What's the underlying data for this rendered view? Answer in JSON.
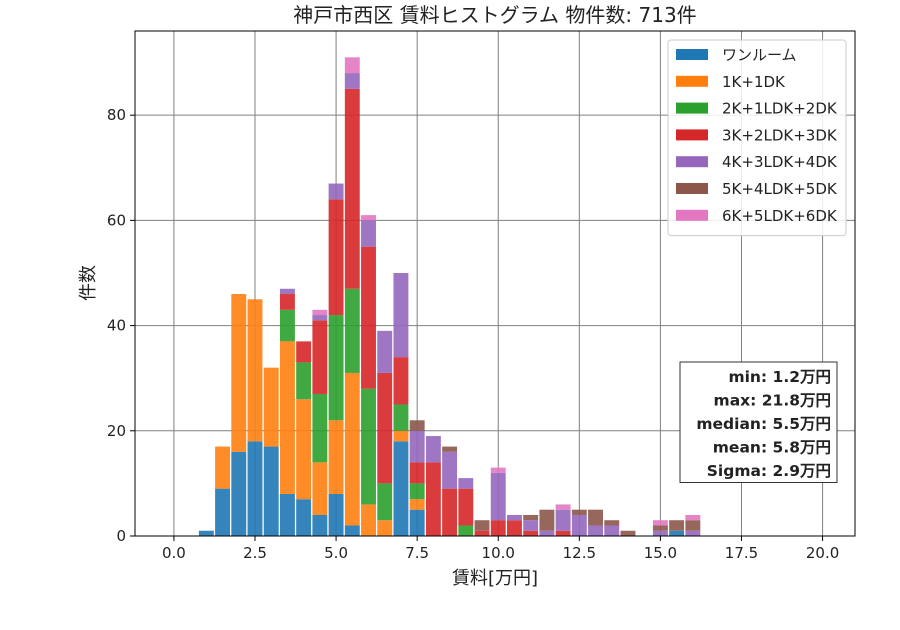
{
  "chart_data": {
    "type": "bar",
    "stacked": true,
    "title": "神戸市西区 賃料ヒストグラム 物件数: 713件",
    "xlabel": "賃料[万円]",
    "ylabel": "件数",
    "xlim": [
      -1.2,
      21.0
    ],
    "ylim": [
      0,
      96
    ],
    "grid": true,
    "legend_position": "top-right",
    "bin_width": 0.5,
    "x": [
      1.0,
      1.5,
      2.0,
      2.5,
      3.0,
      3.5,
      4.0,
      4.5,
      5.0,
      5.5,
      6.0,
      6.5,
      7.0,
      7.5,
      8.0,
      8.5,
      9.0,
      9.5,
      10.0,
      10.5,
      11.0,
      11.5,
      12.0,
      12.5,
      13.0,
      13.5,
      14.0,
      14.5,
      15.0,
      15.5,
      16.0
    ],
    "series": [
      {
        "name": "ワンルーム",
        "color": "#1f77b4",
        "values": [
          1,
          9,
          16,
          18,
          17,
          8,
          7,
          4,
          8,
          2,
          0,
          0,
          18,
          5,
          0,
          0,
          0,
          0,
          0,
          0,
          0,
          0,
          0,
          0,
          0,
          0,
          0,
          0,
          0,
          1,
          0
        ]
      },
      {
        "name": "1K+1DK",
        "color": "#ff7f0e",
        "values": [
          0,
          8,
          30,
          27,
          15,
          29,
          19,
          10,
          14,
          29,
          6,
          3,
          2,
          2,
          0,
          0,
          0,
          0,
          0,
          0,
          0,
          0,
          0,
          0,
          0,
          0,
          0,
          0,
          0,
          0,
          0
        ]
      },
      {
        "name": "2K+1LDK+2DK",
        "color": "#2ca02c",
        "values": [
          0,
          0,
          0,
          0,
          0,
          6,
          7,
          13,
          20,
          16,
          22,
          7,
          5,
          3,
          0,
          0,
          2,
          0,
          0,
          0,
          0,
          0,
          0,
          0,
          0,
          0,
          0,
          0,
          0,
          0,
          0
        ]
      },
      {
        "name": "3K+2LDK+3DK",
        "color": "#d62728",
        "values": [
          0,
          0,
          0,
          0,
          0,
          3,
          4,
          14,
          22,
          38,
          27,
          21,
          9,
          4,
          14,
          9,
          7,
          1,
          3,
          3,
          1,
          0,
          1,
          0,
          0,
          0,
          0,
          0,
          0,
          0,
          0
        ]
      },
      {
        "name": "4K+3LDK+4DK",
        "color": "#9467bd",
        "values": [
          0,
          0,
          0,
          0,
          0,
          1,
          0,
          1,
          3,
          3,
          5,
          8,
          16,
          6,
          5,
          7,
          2,
          0,
          9,
          1,
          2,
          1,
          4,
          4,
          2,
          2,
          0,
          0,
          1,
          0,
          1
        ]
      },
      {
        "name": "5K+4LDK+5DK",
        "color": "#8c564b",
        "values": [
          0,
          0,
          0,
          0,
          0,
          0,
          0,
          0,
          0,
          0,
          0,
          0,
          0,
          2,
          0,
          1,
          0,
          2,
          0,
          0,
          1,
          4,
          0,
          1,
          3,
          1,
          1,
          0,
          1,
          2,
          2
        ]
      },
      {
        "name": "6K+5LDK+6DK",
        "color": "#e377c2",
        "values": [
          0,
          0,
          0,
          0,
          0,
          0,
          0,
          1,
          0,
          3,
          1,
          0,
          0,
          0,
          0,
          0,
          0,
          0,
          1,
          0,
          0,
          0,
          1,
          0,
          0,
          0,
          0,
          0,
          1,
          0,
          1
        ]
      }
    ],
    "xticks": [
      0.0,
      2.5,
      5.0,
      7.5,
      10.0,
      12.5,
      15.0,
      17.5,
      20.0
    ],
    "xtick_labels": [
      "0.0",
      "2.5",
      "5.0",
      "7.5",
      "10.0",
      "12.5",
      "15.0",
      "17.5",
      "20.0"
    ],
    "yticks": [
      0,
      20,
      40,
      60,
      80
    ],
    "ytick_labels": [
      "0",
      "20",
      "40",
      "60",
      "80"
    ],
    "stats": [
      "min: 1.2万円",
      "max: 21.8万円",
      "median: 5.5万円",
      "mean: 5.8万円",
      "Sigma: 2.9万円"
    ]
  }
}
